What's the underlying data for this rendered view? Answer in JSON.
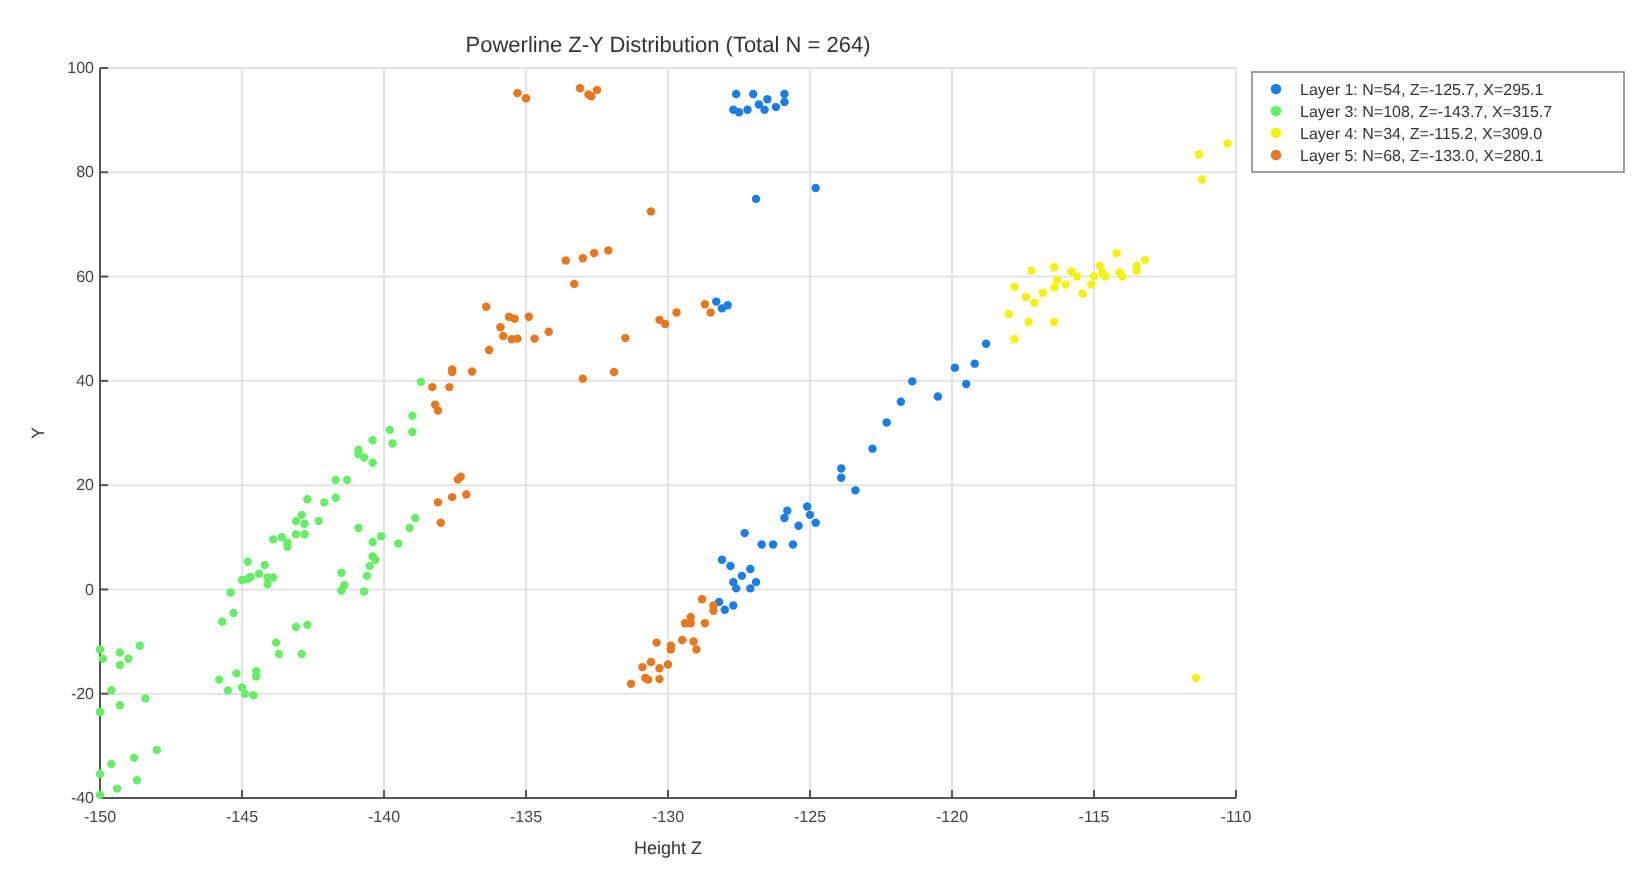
{
  "chart_data": {
    "type": "scatter",
    "title": "Powerline Z-Y Distribution (Total N = 264)",
    "xlabel": "Height Z",
    "ylabel": "Y",
    "xlim": [
      -150,
      -110
    ],
    "xticks": [
      -150,
      -145,
      -140,
      -135,
      -130,
      -125,
      -120,
      -115,
      -110
    ],
    "ylim": [
      -40,
      100
    ],
    "yticks": [
      -40,
      -20,
      0,
      20,
      40,
      60,
      80,
      100
    ],
    "grid": true,
    "legend": "right",
    "marker": "circle",
    "series": [
      {
        "name": "Layer 1: N=54, Z=-125.7, X=295.1",
        "color": "#1a7ee6",
        "x": [
          -127.6,
          -127.0,
          -126.8,
          -127.5,
          -127.2,
          -126.5,
          -126.2,
          -125.9,
          -126.6,
          -127.7,
          -125.9,
          -126.9,
          -124.8,
          -128.3,
          -128.1,
          -127.9,
          -123.9,
          -123.9,
          -123.4,
          -122.8,
          -122.3,
          -121.8,
          -121.4,
          -120.5,
          -119.9,
          -119.5,
          -119.2,
          -118.8,
          -125.8,
          -125.9,
          -125.1,
          -125.0,
          -124.8,
          -125.4,
          -125.6,
          -126.3,
          -126.7,
          -127.3,
          -128.1,
          -127.8,
          -127.4,
          -127.1,
          -126.9,
          -127.7,
          -127.6,
          -127.1,
          -128.2,
          -128.0,
          -127.7
        ],
        "values": [
          95,
          95,
          93,
          91.5,
          92,
          94,
          92.5,
          95,
          92,
          92,
          93.5,
          74.9,
          77,
          55.2,
          53.9,
          54.5,
          23.2,
          21.4,
          19,
          27,
          32,
          36,
          39.9,
          37,
          42.5,
          39.4,
          43.3,
          47.1,
          15.1,
          13.7,
          15.9,
          14.3,
          12.8,
          12.2,
          8.6,
          8.6,
          8.6,
          10.8,
          5.7,
          4.5,
          2.6,
          3.9,
          1.4,
          1.4,
          0.2,
          0.2,
          -2.4,
          -3.9,
          -3.1
        ]
      },
      {
        "name": "Layer 3: N=108, Z=-143.7, X=315.7",
        "color": "#66ee66",
        "x": [
          -150.0,
          -149.9,
          -150.0,
          -149.3,
          -149.3,
          -149.0,
          -148.6,
          -149.6,
          -149.3,
          -148.4,
          -150.0,
          -149.6,
          -148.8,
          -148.7,
          -149.4,
          -148.0,
          -150.0,
          -145.8,
          -145.7,
          -145.4,
          -145.3,
          -145.5,
          -145.2,
          -145.0,
          -144.9,
          -144.6,
          -144.5,
          -144.5,
          -145.0,
          -144.8,
          -144.8,
          -144.7,
          -144.4,
          -144.2,
          -144.1,
          -144.1,
          -143.9,
          -143.9,
          -143.6,
          -143.4,
          -143.4,
          -143.1,
          -142.9,
          -142.8,
          -143.1,
          -142.8,
          -142.7,
          -142.3,
          -142.1,
          -141.7,
          -141.7,
          -141.3,
          -140.9,
          -140.7,
          -140.9,
          -140.4,
          -140.4,
          -139.8,
          -139.7,
          -139.0,
          -139.0,
          -138.7,
          -143.8,
          -143.7,
          -143.1,
          -142.9,
          -142.7,
          -141.5,
          -141.4,
          -141.5,
          -140.9,
          -140.7,
          -140.6,
          -140.5,
          -140.4,
          -140.4,
          -140.3,
          -140.1,
          -139.5,
          -139.1,
          -138.9
        ],
        "values": [
          -11.5,
          -13.3,
          -23.5,
          -12.1,
          -14.5,
          -13.3,
          -10.8,
          -19.4,
          -22.2,
          -20.9,
          -35.4,
          -33.5,
          -32.3,
          -36.6,
          -38.2,
          -30.8,
          -39.4,
          -17.3,
          -6.2,
          -0.6,
          -4.5,
          -19.4,
          -16.1,
          -18.8,
          -20.0,
          -20.3,
          -15.7,
          -16.7,
          1.8,
          5.3,
          2.0,
          2.4,
          3.0,
          4.7,
          2.3,
          1.0,
          2.3,
          9.6,
          10.0,
          8.2,
          9.0,
          13.1,
          14.3,
          12.6,
          10.6,
          10.6,
          17.3,
          13.1,
          16.7,
          17.6,
          21.0,
          21.0,
          25.9,
          25.3,
          26.8,
          28.6,
          24.3,
          30.6,
          28.0,
          33.3,
          30.2,
          39.8,
          -10.2,
          -12.4,
          -7.2,
          -12.4,
          -6.8,
          3.2,
          0.8,
          -0.2,
          11.8,
          -0.4,
          2.6,
          4.5,
          9.1,
          6.3,
          5.7,
          10.2,
          8.8,
          11.8,
          13.7
        ]
      },
      {
        "name": "Layer 4: N=34, Z=-115.2, X=309.0",
        "color": "#f2f20d",
        "x": [
          -110.3,
          -111.3,
          -111.2,
          -111.4,
          -117.2,
          -116.4,
          -116.3,
          -116.4,
          -116.8,
          -117.4,
          -117.1,
          -118.0,
          -117.3,
          -116.4,
          -117.8,
          -115.6,
          -115.4,
          -115.1,
          -115.0,
          -114.8,
          -114.7,
          -114.6,
          -114.2,
          -114.1,
          -114.0,
          -113.5,
          -113.5,
          -113.2,
          -117.8,
          -116.0,
          -115.8
        ],
        "values": [
          85.5,
          83.4,
          78.6,
          -17,
          61.1,
          61.8,
          59.3,
          57.9,
          56.9,
          56.1,
          55.0,
          52.8,
          51.3,
          51.3,
          48.0,
          60.0,
          56.7,
          58.5,
          60.0,
          62.1,
          60.8,
          60.0,
          64.5,
          60.8,
          60.0,
          62.1,
          61.1,
          63.2,
          58,
          58.5,
          61
        ]
      },
      {
        "name": "Layer 5: N=68, Z=-133.0, X=280.1",
        "color": "#e8781e",
        "x": [
          -138.3,
          -138.2,
          -138.1,
          -137.7,
          -137.6,
          -137.6,
          -136.9,
          -136.3,
          -138.1,
          -138.0,
          -137.6,
          -137.4,
          -137.3,
          -137.1,
          -135.3,
          -135.0,
          -133.1,
          -132.8,
          -132.7,
          -132.5,
          -130.6,
          -133.6,
          -133.0,
          -132.6,
          -132.1,
          -133.3,
          -136.4,
          -135.9,
          -135.6,
          -135.4,
          -134.9,
          -134.2,
          -135.8,
          -135.5,
          -135.3,
          -134.7,
          -133.0,
          -131.9,
          -131.5,
          -130.3,
          -130.1,
          -129.7,
          -128.7,
          -128.5,
          -131.3,
          -130.9,
          -130.8,
          -130.7,
          -130.6,
          -130.4,
          -130.3,
          -130.3,
          -130.0,
          -129.9,
          -129.9,
          -129.5,
          -129.4,
          -129.2,
          -129.2,
          -129.1,
          -129.0,
          -128.8,
          -128.7,
          -128.4,
          -128.4
        ],
        "values": [
          38.8,
          35.4,
          34.3,
          38.8,
          42.2,
          41.7,
          41.8,
          45.9,
          16.7,
          12.8,
          17.7,
          21.1,
          21.6,
          18.2,
          95.2,
          94.2,
          96.1,
          94.9,
          94.6,
          95.8,
          72.5,
          63.1,
          63.5,
          64.5,
          65.0,
          58.6,
          54.2,
          50.3,
          52.3,
          51.9,
          52.3,
          49.4,
          48.6,
          48.0,
          48.1,
          48.1,
          40.4,
          41.7,
          48.2,
          51.7,
          50.9,
          53.1,
          54.7,
          53.1,
          -18.1,
          -14.9,
          -17.0,
          -17.3,
          -13.9,
          -10.2,
          -17.2,
          -15.1,
          -14.4,
          -11.5,
          -10.8,
          -9.7,
          -6.5,
          -5.3,
          -6.5,
          -10.0,
          -11.5,
          -1.9,
          -6.5,
          -4.1,
          -3.1
        ]
      }
    ]
  }
}
